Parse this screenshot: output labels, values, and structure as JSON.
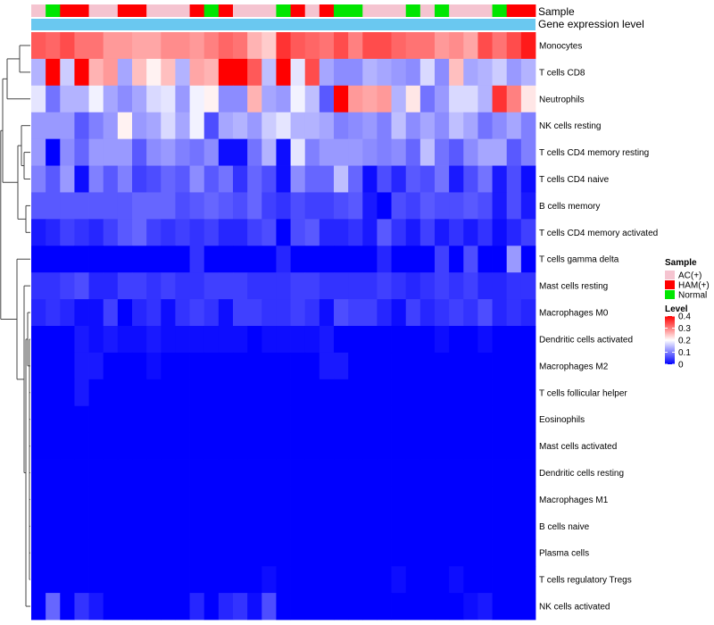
{
  "chart_data": {
    "type": "heatmap",
    "title": "",
    "annotation_rows": [
      {
        "name": "Sample",
        "label": "Sample"
      },
      {
        "name": "Gene expression level",
        "label": "Gene expression level"
      }
    ],
    "rows": [
      "Monocytes",
      "T cells CD8",
      "Neutrophils",
      "NK cells resting",
      "T cells CD4 memory resting",
      "T cells CD4 naive",
      "B cells memory",
      "T cells CD4 memory activated",
      "T cells gamma delta",
      "Mast cells resting",
      "Macrophages M0",
      "Dendritic cells activated",
      "Macrophages M2",
      "T cells follicular helper",
      "Eosinophils",
      "Mast cells activated",
      "Dendritic cells resting",
      "Macrophages M1",
      "B cells naive",
      "Plasma cells",
      "T cells regulatory  Tregs",
      "NK cells activated"
    ],
    "sample_groups": [
      "AC",
      "N",
      "H",
      "H",
      "AC",
      "AC",
      "H",
      "H",
      "AC",
      "AC",
      "AC",
      "H",
      "N",
      "H",
      "AC",
      "AC",
      "AC",
      "N",
      "H",
      "AC",
      "H",
      "N",
      "N",
      "AC",
      "AC",
      "AC",
      "N",
      "AC",
      "N",
      "AC",
      "AC",
      "AC",
      "N",
      "H",
      "H"
    ],
    "values": [
      [
        0.33,
        0.32,
        0.34,
        0.31,
        0.31,
        0.28,
        0.28,
        0.27,
        0.27,
        0.29,
        0.29,
        0.28,
        0.3,
        0.32,
        0.31,
        0.26,
        0.24,
        0.36,
        0.33,
        0.32,
        0.31,
        0.34,
        0.3,
        0.34,
        0.34,
        0.32,
        0.31,
        0.31,
        0.28,
        0.29,
        0.27,
        0.34,
        0.31,
        0.34,
        0.38
      ],
      [
        0.14,
        0.4,
        0.16,
        0.4,
        0.26,
        0.28,
        0.13,
        0.25,
        0.21,
        0.25,
        0.14,
        0.27,
        0.26,
        0.4,
        0.4,
        0.33,
        0.15,
        0.4,
        0.18,
        0.34,
        0.13,
        0.11,
        0.11,
        0.14,
        0.13,
        0.12,
        0.11,
        0.17,
        0.11,
        0.25,
        0.13,
        0.14,
        0.16,
        0.12,
        0.14
      ],
      [
        0.18,
        0.09,
        0.14,
        0.14,
        0.19,
        0.13,
        0.11,
        0.13,
        0.17,
        0.18,
        0.12,
        0.19,
        0.21,
        0.11,
        0.11,
        0.26,
        0.13,
        0.12,
        0.19,
        0.15,
        0.07,
        0.4,
        0.28,
        0.27,
        0.28,
        0.14,
        0.22,
        0.09,
        0.12,
        0.17,
        0.17,
        0.14,
        0.36,
        0.3,
        0.22
      ],
      [
        0.12,
        0.12,
        0.12,
        0.07,
        0.1,
        0.12,
        0.21,
        0.12,
        0.13,
        0.17,
        0.13,
        0.19,
        0.06,
        0.13,
        0.14,
        0.12,
        0.16,
        0.18,
        0.14,
        0.14,
        0.13,
        0.1,
        0.11,
        0.12,
        0.1,
        0.15,
        0.11,
        0.13,
        0.11,
        0.15,
        0.13,
        0.09,
        0.11,
        0.13,
        0.1
      ],
      [
        0.12,
        0.0,
        0.11,
        0.08,
        0.12,
        0.12,
        0.12,
        0.07,
        0.11,
        0.12,
        0.1,
        0.09,
        0.11,
        0.01,
        0.01,
        0.09,
        0.14,
        0.01,
        0.18,
        0.1,
        0.12,
        0.12,
        0.12,
        0.11,
        0.1,
        0.11,
        0.08,
        0.15,
        0.09,
        0.07,
        0.11,
        0.13,
        0.13,
        0.07,
        0.1
      ],
      [
        0.1,
        0.07,
        0.12,
        0.01,
        0.1,
        0.07,
        0.1,
        0.05,
        0.06,
        0.08,
        0.07,
        0.11,
        0.07,
        0.09,
        0.04,
        0.08,
        0.06,
        0.01,
        0.11,
        0.08,
        0.08,
        0.15,
        0.08,
        0.01,
        0.06,
        0.03,
        0.07,
        0.06,
        0.09,
        0.02,
        0.06,
        0.09,
        0.02,
        0.06,
        0.01
      ],
      [
        0.07,
        0.07,
        0.07,
        0.07,
        0.07,
        0.07,
        0.07,
        0.08,
        0.08,
        0.08,
        0.06,
        0.07,
        0.08,
        0.07,
        0.06,
        0.08,
        0.05,
        0.04,
        0.06,
        0.05,
        0.05,
        0.06,
        0.07,
        0.02,
        0.0,
        0.06,
        0.05,
        0.07,
        0.06,
        0.06,
        0.07,
        0.06,
        0.02,
        0.06,
        0.02
      ],
      [
        0.02,
        0.03,
        0.05,
        0.04,
        0.03,
        0.05,
        0.07,
        0.08,
        0.05,
        0.04,
        0.05,
        0.04,
        0.05,
        0.03,
        0.03,
        0.05,
        0.06,
        0.0,
        0.06,
        0.07,
        0.03,
        0.03,
        0.04,
        0.02,
        0.07,
        0.04,
        0.02,
        0.05,
        0.02,
        0.04,
        0.02,
        0.04,
        0.01,
        0.03,
        0.05
      ],
      [
        0.0,
        0.0,
        0.0,
        0.0,
        0.0,
        0.0,
        0.0,
        0.0,
        0.0,
        0.0,
        0.0,
        0.04,
        0.0,
        0.0,
        0.0,
        0.0,
        0.0,
        0.03,
        0.0,
        0.0,
        0.0,
        0.0,
        0.0,
        0.0,
        0.03,
        0.0,
        0.0,
        0.0,
        0.05,
        0.0,
        0.06,
        0.0,
        0.0,
        0.12,
        0.0
      ],
      [
        0.04,
        0.04,
        0.05,
        0.06,
        0.03,
        0.03,
        0.05,
        0.05,
        0.04,
        0.05,
        0.04,
        0.04,
        0.05,
        0.05,
        0.05,
        0.04,
        0.04,
        0.04,
        0.05,
        0.05,
        0.04,
        0.04,
        0.04,
        0.04,
        0.05,
        0.04,
        0.03,
        0.04,
        0.05,
        0.04,
        0.05,
        0.03,
        0.03,
        0.04,
        0.04
      ],
      [
        0.03,
        0.04,
        0.03,
        0.01,
        0.01,
        0.05,
        0.0,
        0.03,
        0.04,
        0.01,
        0.04,
        0.05,
        0.04,
        0.01,
        0.05,
        0.05,
        0.04,
        0.04,
        0.05,
        0.04,
        0.01,
        0.06,
        0.05,
        0.05,
        0.03,
        0.01,
        0.05,
        0.03,
        0.04,
        0.05,
        0.04,
        0.06,
        0.03,
        0.04,
        0.03
      ],
      [
        0.0,
        0.0,
        0.0,
        0.02,
        0.01,
        0.02,
        0.01,
        0.01,
        0.02,
        0.01,
        0.01,
        0.01,
        0.01,
        0.01,
        0.01,
        0.0,
        0.01,
        0.01,
        0.01,
        0.01,
        0.02,
        0.0,
        0.0,
        0.0,
        0.0,
        0.0,
        0.0,
        0.0,
        0.01,
        0.0,
        0.0,
        0.01,
        0.0,
        0.0,
        0.0
      ],
      [
        0.0,
        0.0,
        0.0,
        0.02,
        0.02,
        0.0,
        0.0,
        0.0,
        0.01,
        0.0,
        0.0,
        0.0,
        0.0,
        0.0,
        0.0,
        0.0,
        0.0,
        0.0,
        0.0,
        0.0,
        0.02,
        0.02,
        0.0,
        0.0,
        0.0,
        0.0,
        0.0,
        0.0,
        0.0,
        0.0,
        0.0,
        0.0,
        0.0,
        0.0,
        0.0
      ],
      [
        0.0,
        0.0,
        0.0,
        0.02,
        0.0,
        0.0,
        0.0,
        0.0,
        0.0,
        0.0,
        0.0,
        0.0,
        0.0,
        0.0,
        0.0,
        0.0,
        0.0,
        0.0,
        0.0,
        0.0,
        0.0,
        0.0,
        0.0,
        0.0,
        0.0,
        0.0,
        0.0,
        0.0,
        0.0,
        0.0,
        0.0,
        0.0,
        0.0,
        0.0,
        0.0
      ],
      [
        0.0,
        0.0,
        0.0,
        0.0,
        0.0,
        0.0,
        0.0,
        0.0,
        0.0,
        0.0,
        0.0,
        0.0,
        0.0,
        0.0,
        0.0,
        0.0,
        0.0,
        0.0,
        0.0,
        0.0,
        0.0,
        0.0,
        0.0,
        0.0,
        0.0,
        0.0,
        0.0,
        0.0,
        0.0,
        0.0,
        0.0,
        0.0,
        0.0,
        0.0,
        0.0
      ],
      [
        0.0,
        0.0,
        0.0,
        0.0,
        0.0,
        0.0,
        0.0,
        0.0,
        0.0,
        0.0,
        0.0,
        0.0,
        0.0,
        0.0,
        0.0,
        0.0,
        0.0,
        0.0,
        0.0,
        0.0,
        0.0,
        0.0,
        0.0,
        0.0,
        0.0,
        0.0,
        0.0,
        0.0,
        0.0,
        0.0,
        0.0,
        0.0,
        0.0,
        0.0,
        0.0
      ],
      [
        0.0,
        0.0,
        0.0,
        0.0,
        0.0,
        0.0,
        0.0,
        0.0,
        0.0,
        0.0,
        0.0,
        0.0,
        0.0,
        0.0,
        0.0,
        0.0,
        0.0,
        0.0,
        0.0,
        0.0,
        0.0,
        0.0,
        0.0,
        0.0,
        0.0,
        0.0,
        0.0,
        0.0,
        0.0,
        0.0,
        0.0,
        0.0,
        0.0,
        0.0,
        0.0
      ],
      [
        0.0,
        0.0,
        0.0,
        0.0,
        0.0,
        0.0,
        0.0,
        0.0,
        0.0,
        0.0,
        0.0,
        0.0,
        0.0,
        0.0,
        0.0,
        0.0,
        0.0,
        0.0,
        0.0,
        0.0,
        0.0,
        0.0,
        0.0,
        0.0,
        0.0,
        0.0,
        0.0,
        0.0,
        0.0,
        0.0,
        0.0,
        0.0,
        0.0,
        0.0,
        0.0
      ],
      [
        0.0,
        0.0,
        0.0,
        0.0,
        0.0,
        0.0,
        0.0,
        0.0,
        0.0,
        0.0,
        0.0,
        0.0,
        0.0,
        0.0,
        0.0,
        0.0,
        0.0,
        0.0,
        0.0,
        0.0,
        0.0,
        0.0,
        0.0,
        0.0,
        0.0,
        0.0,
        0.0,
        0.0,
        0.0,
        0.0,
        0.0,
        0.0,
        0.0,
        0.0,
        0.0
      ],
      [
        0.0,
        0.0,
        0.0,
        0.0,
        0.0,
        0.0,
        0.0,
        0.0,
        0.0,
        0.0,
        0.0,
        0.0,
        0.0,
        0.0,
        0.0,
        0.0,
        0.0,
        0.0,
        0.0,
        0.0,
        0.0,
        0.0,
        0.0,
        0.0,
        0.0,
        0.0,
        0.0,
        0.0,
        0.0,
        0.0,
        0.0,
        0.0,
        0.0,
        0.0,
        0.0
      ],
      [
        0.0,
        0.0,
        0.0,
        0.0,
        0.0,
        0.0,
        0.0,
        0.0,
        0.0,
        0.0,
        0.0,
        0.0,
        0.0,
        0.0,
        0.0,
        0.0,
        0.01,
        0.0,
        0.0,
        0.0,
        0.0,
        0.0,
        0.0,
        0.0,
        0.0,
        0.01,
        0.0,
        0.0,
        0.0,
        0.01,
        0.0,
        0.0,
        0.0,
        0.0,
        0.0
      ],
      [
        0.0,
        0.08,
        0.0,
        0.04,
        0.02,
        0.0,
        0.0,
        0.0,
        0.0,
        0.0,
        0.0,
        0.03,
        0.0,
        0.03,
        0.04,
        0.01,
        0.06,
        0.0,
        0.0,
        0.0,
        0.0,
        0.0,
        0.0,
        0.0,
        0.0,
        0.0,
        0.0,
        0.0,
        0.0,
        0.0,
        0.01,
        0.02,
        0.0,
        0.0,
        0.0
      ]
    ],
    "color_scale": {
      "min": 0,
      "mid": 0.2,
      "max": 0.4,
      "low": "#0000ff",
      "midColor": "#ffffff",
      "high": "#ff0000"
    },
    "gene_expression_color": "#6ac8f0",
    "legend": {
      "sample_title": "Sample",
      "sample_entries": [
        {
          "key": "AC",
          "label": "AC(+)",
          "color": "#f5c4d0"
        },
        {
          "key": "H",
          "label": "HAM(+)",
          "color": "#ff0000"
        },
        {
          "key": "N",
          "label": "Normal",
          "color": "#00e600"
        }
      ],
      "level_title": "Level",
      "level_ticks": [
        {
          "value": 0.4,
          "label": "0.4"
        },
        {
          "value": 0.3,
          "label": "0.3"
        },
        {
          "value": 0.2,
          "label": "0.2"
        },
        {
          "value": 0.1,
          "label": "0.1"
        },
        {
          "value": 0,
          "label": "0"
        }
      ]
    },
    "dendrogram": "row clustering tree on left side"
  }
}
